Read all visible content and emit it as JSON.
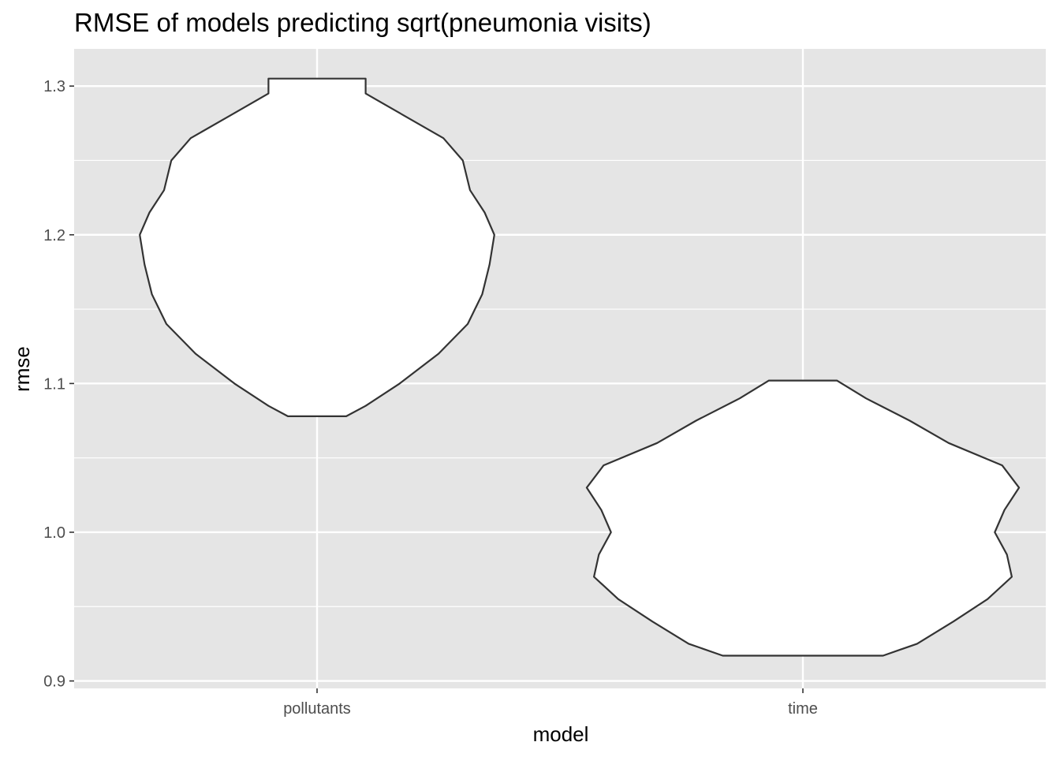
{
  "chart_data": {
    "type": "violin",
    "title": "RMSE of models predicting sqrt(pneumonia visits)",
    "xlabel": "model",
    "ylabel": "rmse",
    "categories": [
      "pollutants",
      "time"
    ],
    "ylim": [
      0.895,
      1.325
    ],
    "yticks": [
      0.9,
      1.0,
      1.1,
      1.2,
      1.3
    ],
    "ytick_labels": [
      "0.9",
      "1.0",
      "1.1",
      "1.2",
      "1.3"
    ],
    "grid": true,
    "panel_background": "#e5e5e5",
    "grid_color": "#ffffff",
    "violin_fill": "#ffffff",
    "violin_stroke": "#333333",
    "violins": [
      {
        "category": "pollutants",
        "profile": [
          {
            "y": 1.078,
            "halfwidth": 0.06
          },
          {
            "y": 1.085,
            "halfwidth": 0.1
          },
          {
            "y": 1.1,
            "halfwidth": 0.17
          },
          {
            "y": 1.12,
            "halfwidth": 0.25
          },
          {
            "y": 1.14,
            "halfwidth": 0.31
          },
          {
            "y": 1.16,
            "halfwidth": 0.34
          },
          {
            "y": 1.18,
            "halfwidth": 0.355
          },
          {
            "y": 1.2,
            "halfwidth": 0.365
          },
          {
            "y": 1.215,
            "halfwidth": 0.345
          },
          {
            "y": 1.23,
            "halfwidth": 0.315
          },
          {
            "y": 1.25,
            "halfwidth": 0.3
          },
          {
            "y": 1.265,
            "halfwidth": 0.26
          },
          {
            "y": 1.28,
            "halfwidth": 0.18
          },
          {
            "y": 1.295,
            "halfwidth": 0.1
          },
          {
            "y": 1.305,
            "halfwidth": 0.1
          }
        ]
      },
      {
        "category": "time",
        "profile": [
          {
            "y": 0.917,
            "halfwidth": 0.165
          },
          {
            "y": 0.925,
            "halfwidth": 0.235
          },
          {
            "y": 0.94,
            "halfwidth": 0.31
          },
          {
            "y": 0.955,
            "halfwidth": 0.38
          },
          {
            "y": 0.97,
            "halfwidth": 0.43
          },
          {
            "y": 0.985,
            "halfwidth": 0.42
          },
          {
            "y": 1.0,
            "halfwidth": 0.395
          },
          {
            "y": 1.015,
            "halfwidth": 0.415
          },
          {
            "y": 1.03,
            "halfwidth": 0.445
          },
          {
            "y": 1.045,
            "halfwidth": 0.41
          },
          {
            "y": 1.06,
            "halfwidth": 0.3
          },
          {
            "y": 1.075,
            "halfwidth": 0.22
          },
          {
            "y": 1.09,
            "halfwidth": 0.13
          },
          {
            "y": 1.102,
            "halfwidth": 0.07
          }
        ]
      }
    ]
  }
}
